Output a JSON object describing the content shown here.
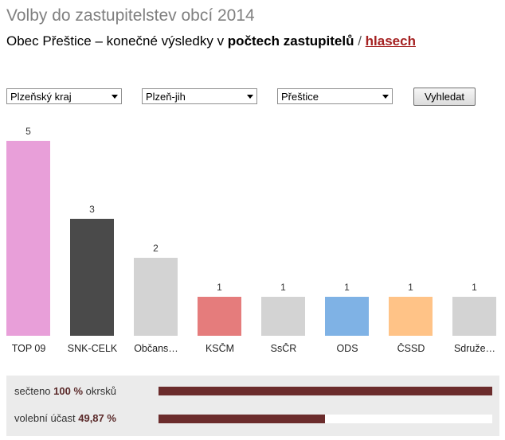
{
  "header": {
    "title": "Volby do zastupitelstev obcí 2014",
    "subtitle_prefix": "Obec Přeštice – konečné výsledky v ",
    "subtitle_bold": "počtech zastupitelů",
    "subtitle_sep": " / ",
    "subtitle_link": "hlasech"
  },
  "filters": {
    "region": "Plzeňský kraj",
    "district": "Plzeň-jih",
    "municipality": "Přeštice",
    "search_label": "Vyhledat"
  },
  "chart_data": {
    "type": "bar",
    "categories": [
      "TOP 09",
      "SNK-CELK",
      "Občans…",
      "KSČM",
      "SsČR",
      "ODS",
      "ČSSD",
      "Sdruže…"
    ],
    "values": [
      5,
      3,
      2,
      1,
      1,
      1,
      1,
      1
    ],
    "colors": [
      "#e89fd9",
      "#4a4a4a",
      "#d3d3d3",
      "#e57c7c",
      "#d3d3d3",
      "#7fb2e5",
      "#ffc387",
      "#d3d3d3"
    ],
    "max": 5
  },
  "stats": {
    "counted_prefix": "sečteno",
    "counted_value": "100 %",
    "counted_suffix": "okrsků",
    "counted_fraction": 1.0,
    "turnout_label": "volební účast",
    "turnout_value": "49,87 %",
    "turnout_fraction": 0.4987
  }
}
